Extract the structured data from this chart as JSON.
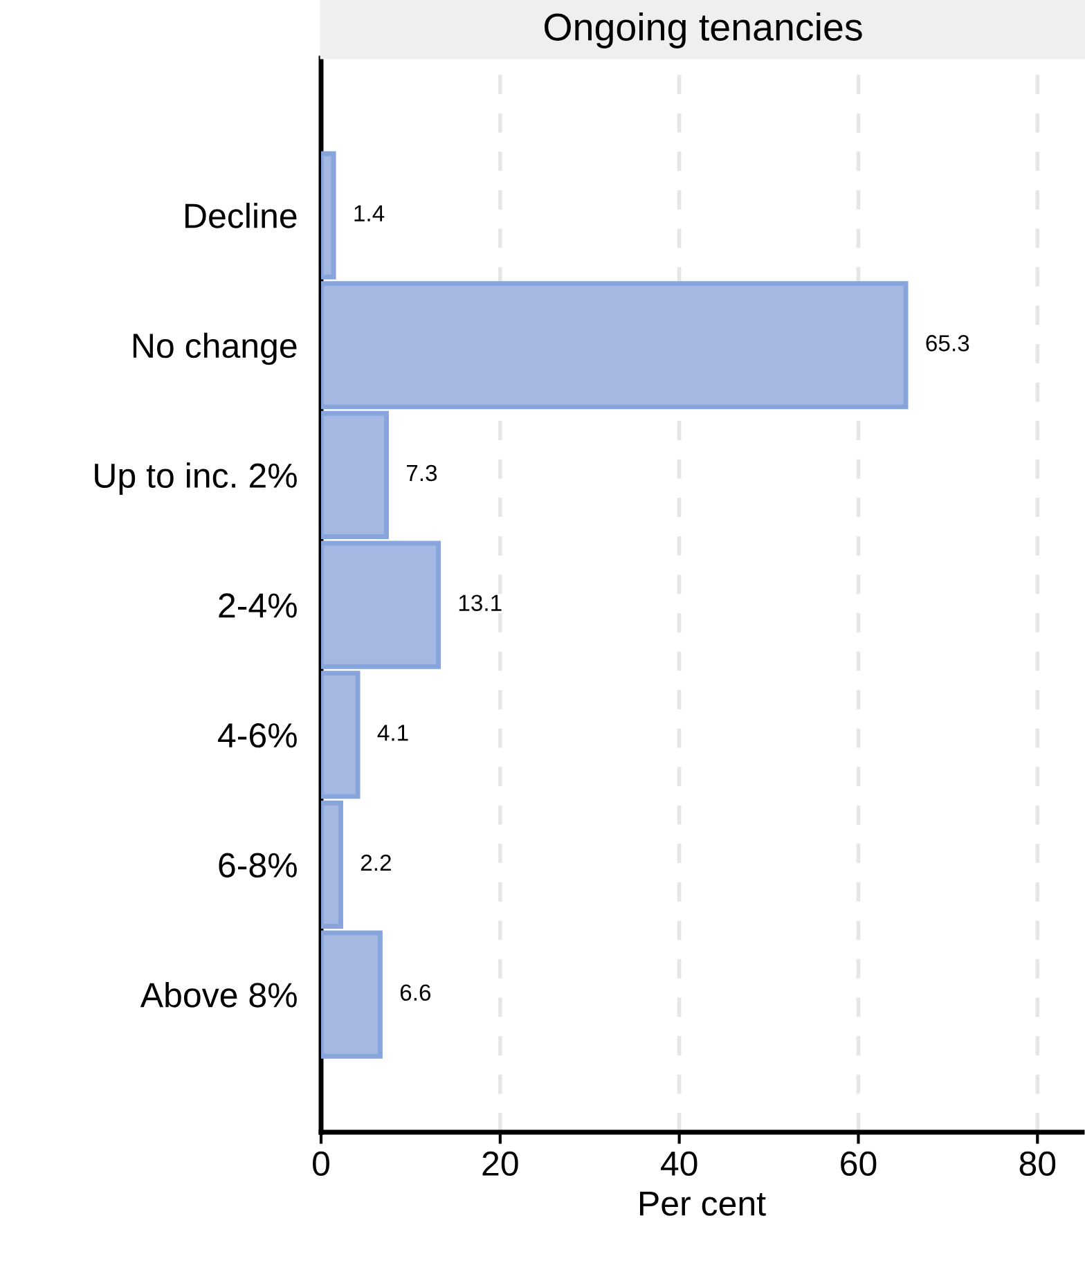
{
  "chart_data": {
    "type": "bar",
    "orientation": "horizontal",
    "title": "Ongoing tenancies",
    "xlabel": "Per cent",
    "categories": [
      "Decline",
      "No change",
      "Up to inc. 2%",
      "2-4%",
      "4-6%",
      "6-8%",
      "Above 8%"
    ],
    "values": [
      1.4,
      65.3,
      7.3,
      13.1,
      4.1,
      2.2,
      6.6
    ],
    "color": "#a4b8e2",
    "xlim": [
      0,
      85
    ],
    "xticks": [
      0,
      20,
      40,
      60,
      80
    ],
    "grid": "x",
    "data_labels": true
  }
}
